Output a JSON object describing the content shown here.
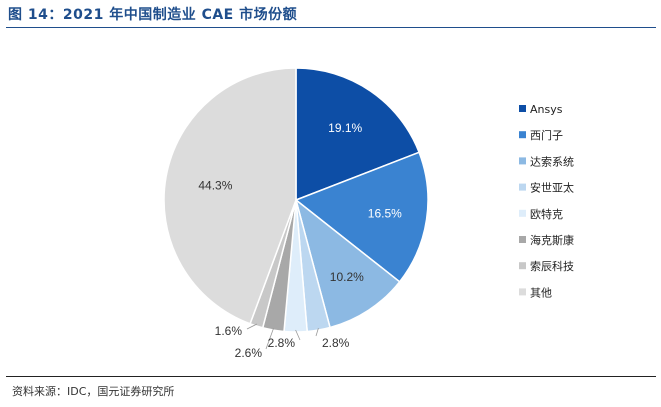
{
  "figure": {
    "caption": "图 14：2021 年中国制造业 CAE 市场份额",
    "source": "资料来源：IDC，国元证券研究所"
  },
  "chart_data": {
    "type": "pie",
    "title": "2021 年中国制造业 CAE 市场份额",
    "unit": "%",
    "start_angle_deg": 0,
    "direction": "clockwise",
    "legend_position": "right",
    "slices": [
      {
        "name": "Ansys",
        "value": 19.1,
        "label": "19.1%",
        "color": "#0d4ea6",
        "label_color": "#ffffff",
        "label_placement": "inside",
        "show_label": true
      },
      {
        "name": "西门子",
        "value": 16.5,
        "label": "16.5%",
        "color": "#3a83d1",
        "label_color": "#ffffff",
        "label_placement": "inside",
        "show_label": true
      },
      {
        "name": "达索系统",
        "value": 10.2,
        "label": "10.2%",
        "color": "#8cb9e3",
        "label_color": "#333333",
        "label_placement": "inside",
        "show_label": true
      },
      {
        "name": "安世亚太",
        "value": 2.8,
        "label": "2.8%",
        "color": "#bcd7f0",
        "label_color": "#333333",
        "label_placement": "outside",
        "show_label": true
      },
      {
        "name": "欧特克",
        "value": 2.8,
        "label": "2.8%",
        "color": "#deedfa",
        "label_color": "#333333",
        "label_placement": "outside",
        "show_label": true
      },
      {
        "name": "海克斯康",
        "value": 2.6,
        "label": "2.6%",
        "color": "#a8a8a8",
        "label_color": "#333333",
        "label_placement": "outside",
        "show_label": true
      },
      {
        "name": "索辰科技",
        "value": 1.6,
        "label": "1.6%",
        "color": "#c8c8c8",
        "label_color": "#333333",
        "label_placement": "outside",
        "show_label": true
      },
      {
        "name": "其他",
        "value": 44.3,
        "label": "44.3%",
        "color": "#dcdcdc",
        "label_color": "#333333",
        "label_placement": "inside",
        "show_label": true
      }
    ]
  }
}
